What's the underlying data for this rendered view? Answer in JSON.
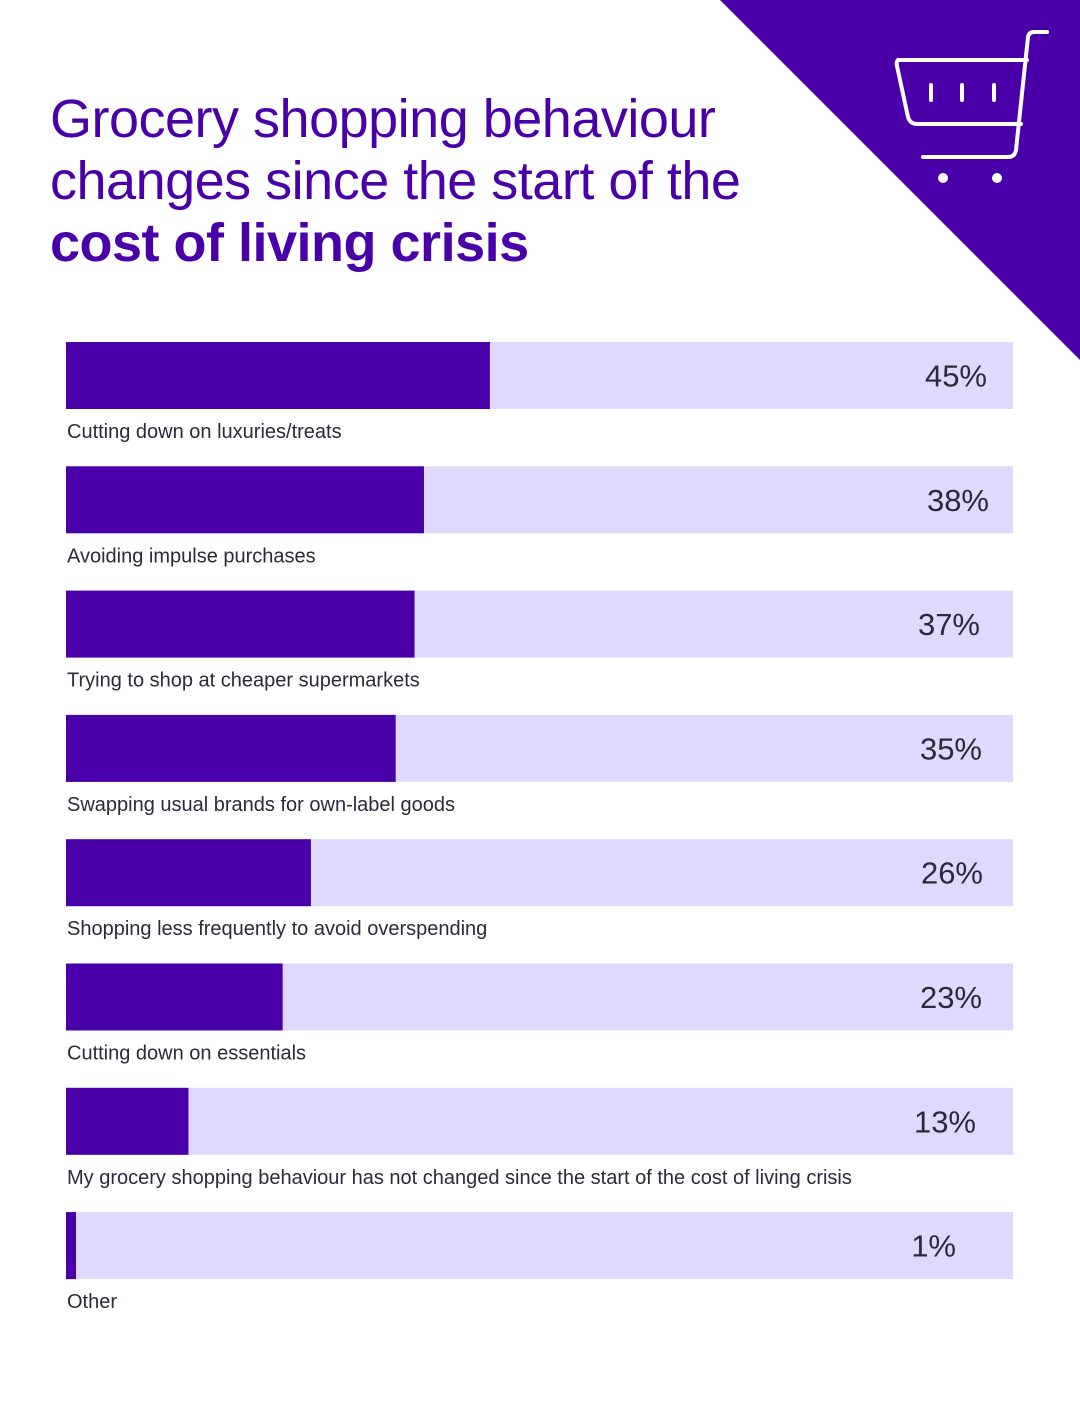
{
  "title": {
    "line1": "Grocery shopping behaviour",
    "line2": "changes since the start of the",
    "line3": "cost of living crisis"
  },
  "colors": {
    "accent": "#4a00a8",
    "track": "#dfdafd",
    "text": "#2a2a3a",
    "background": "#ffffff"
  },
  "icon": "shopping-cart-icon",
  "chart_data": {
    "type": "bar",
    "orientation": "horizontal",
    "title": "Grocery shopping behaviour changes since the start of the cost of living crisis",
    "categories": [
      "Cutting down on luxuries/treats",
      "Avoiding impulse purchases",
      "Trying to shop at cheaper supermarkets",
      "Swapping usual brands for own-label goods",
      "Shopping less frequently to avoid overspending",
      "Cutting down on essentials",
      "My grocery shopping behaviour has not changed since the start of the cost of living crisis",
      "Other"
    ],
    "values": [
      45,
      38,
      37,
      35,
      26,
      23,
      13,
      1
    ],
    "value_labels": [
      "45%",
      "38%",
      "37%",
      "35%",
      "26%",
      "23%",
      "13%",
      "1%"
    ],
    "unit": "%",
    "xlim": [
      0,
      100
    ],
    "xlabel": "",
    "ylabel": "",
    "grid": false
  }
}
